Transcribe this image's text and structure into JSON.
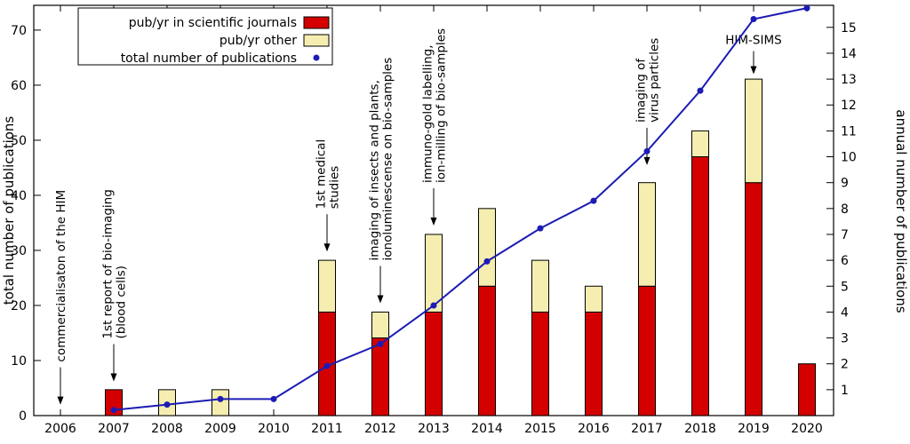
{
  "legend": {
    "items": [
      {
        "label": "pub/yr in scientific journals",
        "swatch": "rect",
        "color": "#d40000"
      },
      {
        "label": "pub/yr other",
        "swatch": "rect",
        "color": "#f5eeb0"
      },
      {
        "label": "total number of publications",
        "swatch": "dot",
        "color": "#1c1cb4"
      }
    ]
  },
  "axes": {
    "x": {
      "tick_labels": [
        "2006",
        "2007",
        "2008",
        "2009",
        "2010",
        "2011",
        "2012",
        "2013",
        "2014",
        "2015",
        "2016",
        "2017",
        "2018",
        "2019",
        "2020"
      ]
    },
    "y_left": {
      "title": "total number of publications",
      "color": "#2222cc",
      "ticks": [
        0,
        10,
        20,
        30,
        40,
        50,
        60,
        70
      ],
      "max": 74.5
    },
    "y_right": {
      "title": "annual number of publications",
      "color": "#d40000",
      "ticks": [
        1,
        2,
        3,
        4,
        5,
        6,
        7,
        8,
        9,
        10,
        11,
        12,
        13,
        14,
        15
      ],
      "scale": 4.7
    }
  },
  "chart_data": {
    "type": "bar",
    "subtype": "stacked bars (right axis) with cumulative line (left axis)",
    "categories": [
      "2006",
      "2007",
      "2008",
      "2009",
      "2010",
      "2011",
      "2012",
      "2013",
      "2014",
      "2015",
      "2016",
      "2017",
      "2018",
      "2019",
      "2020"
    ],
    "series": [
      {
        "name": "pub/yr in scientific journals",
        "type": "bar",
        "axis": "right",
        "color": "#d40000",
        "values": [
          0,
          1,
          0,
          0,
          0,
          4,
          3,
          4,
          5,
          4,
          4,
          5,
          10,
          9,
          2
        ]
      },
      {
        "name": "pub/yr other",
        "type": "bar",
        "axis": "right",
        "color": "#f5eeb0",
        "values": [
          0,
          0,
          1,
          1,
          0,
          2,
          1,
          3,
          3,
          2,
          1,
          4,
          1,
          4,
          0
        ]
      },
      {
        "name": "total number of publications",
        "type": "line",
        "axis": "left",
        "color": "#1c1cb4",
        "values": [
          null,
          1,
          2,
          3,
          3,
          9,
          13,
          20,
          28,
          34,
          39,
          48,
          59,
          72,
          74
        ]
      }
    ],
    "ylim_left": [
      0,
      74.5
    ],
    "ylim_right": [
      0,
      15.85
    ],
    "grid": false,
    "legend_position": "top-left inside",
    "annotations": [
      {
        "year": "2006",
        "lines": [
          "commercialisaton of the HIM"
        ],
        "tip": 2.0,
        "orientation": "vertical"
      },
      {
        "year": "2007",
        "lines": [
          "1st report of bio-imaging",
          "(blood cells)"
        ],
        "tip": 6.2,
        "orientation": "vertical"
      },
      {
        "year": "2011",
        "lines": [
          "1st medical",
          "studies"
        ],
        "tip": 29.8,
        "orientation": "vertical"
      },
      {
        "year": "2012",
        "lines": [
          "imaging of insects and plants,",
          "ionoluminescense on bio-samples"
        ],
        "tip": 20.4,
        "orientation": "vertical"
      },
      {
        "year": "2013",
        "lines": [
          "immuno-gold labelling,",
          "ion-milling of bio-samples"
        ],
        "tip": 34.5,
        "orientation": "vertical"
      },
      {
        "year": "2017",
        "lines": [
          "imaging of",
          "virus particles"
        ],
        "tip": 45.5,
        "orientation": "vertical"
      },
      {
        "year": "2019",
        "lines": [
          "HIM-SIMS"
        ],
        "tip": 62.0,
        "orientation": "horizontal"
      }
    ]
  }
}
